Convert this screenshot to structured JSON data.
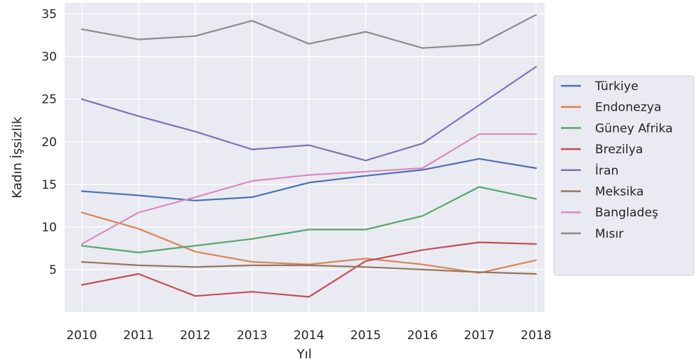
{
  "chart_data": {
    "type": "line",
    "xlabel": "Yıl",
    "ylabel": "Kadın İşsizlik",
    "x": [
      2010,
      2011,
      2012,
      2013,
      2014,
      2015,
      2016,
      2017,
      2018
    ],
    "xlim": [
      2009.7,
      2018.15
    ],
    "ylim": [
      0,
      36.3
    ],
    "yticks": [
      5,
      10,
      15,
      20,
      25,
      30,
      35
    ],
    "grid": true,
    "legend_position": "right",
    "background": "#eaeaf2",
    "series": [
      {
        "name": "Türkiye",
        "color": "#4c72b0",
        "values": [
          14.2,
          13.7,
          13.1,
          13.5,
          15.2,
          16.0,
          16.7,
          18.0,
          16.9
        ]
      },
      {
        "name": "Endonezya",
        "color": "#dd8452",
        "values": [
          11.7,
          9.8,
          7.1,
          5.9,
          5.6,
          6.3,
          5.6,
          4.6,
          6.1
        ]
      },
      {
        "name": "Güney Afrika",
        "color": "#55a868",
        "values": [
          7.8,
          7.0,
          7.8,
          8.6,
          9.7,
          9.7,
          11.3,
          14.7,
          13.3
        ]
      },
      {
        "name": "Brezilya",
        "color": "#c44e52",
        "values": [
          3.2,
          4.5,
          1.9,
          2.4,
          1.8,
          6.0,
          7.3,
          8.2,
          8.0
        ]
      },
      {
        "name": "İran",
        "color": "#8172b3",
        "values": [
          25.0,
          23.0,
          21.2,
          19.1,
          19.6,
          17.8,
          19.8,
          24.3,
          28.8
        ]
      },
      {
        "name": "Meksika",
        "color": "#937860",
        "values": [
          5.9,
          5.5,
          5.3,
          5.5,
          5.5,
          5.3,
          5.0,
          4.7,
          4.5
        ]
      },
      {
        "name": "Bangladeş",
        "color": "#da8bc3",
        "values": [
          8.0,
          11.7,
          13.5,
          15.4,
          16.1,
          16.5,
          16.9,
          20.9,
          20.9
        ]
      },
      {
        "name": "Mısır",
        "color": "#8c8c8c",
        "values": [
          33.2,
          32.0,
          32.4,
          34.2,
          31.5,
          32.9,
          31.0,
          31.4,
          34.9
        ]
      }
    ]
  }
}
